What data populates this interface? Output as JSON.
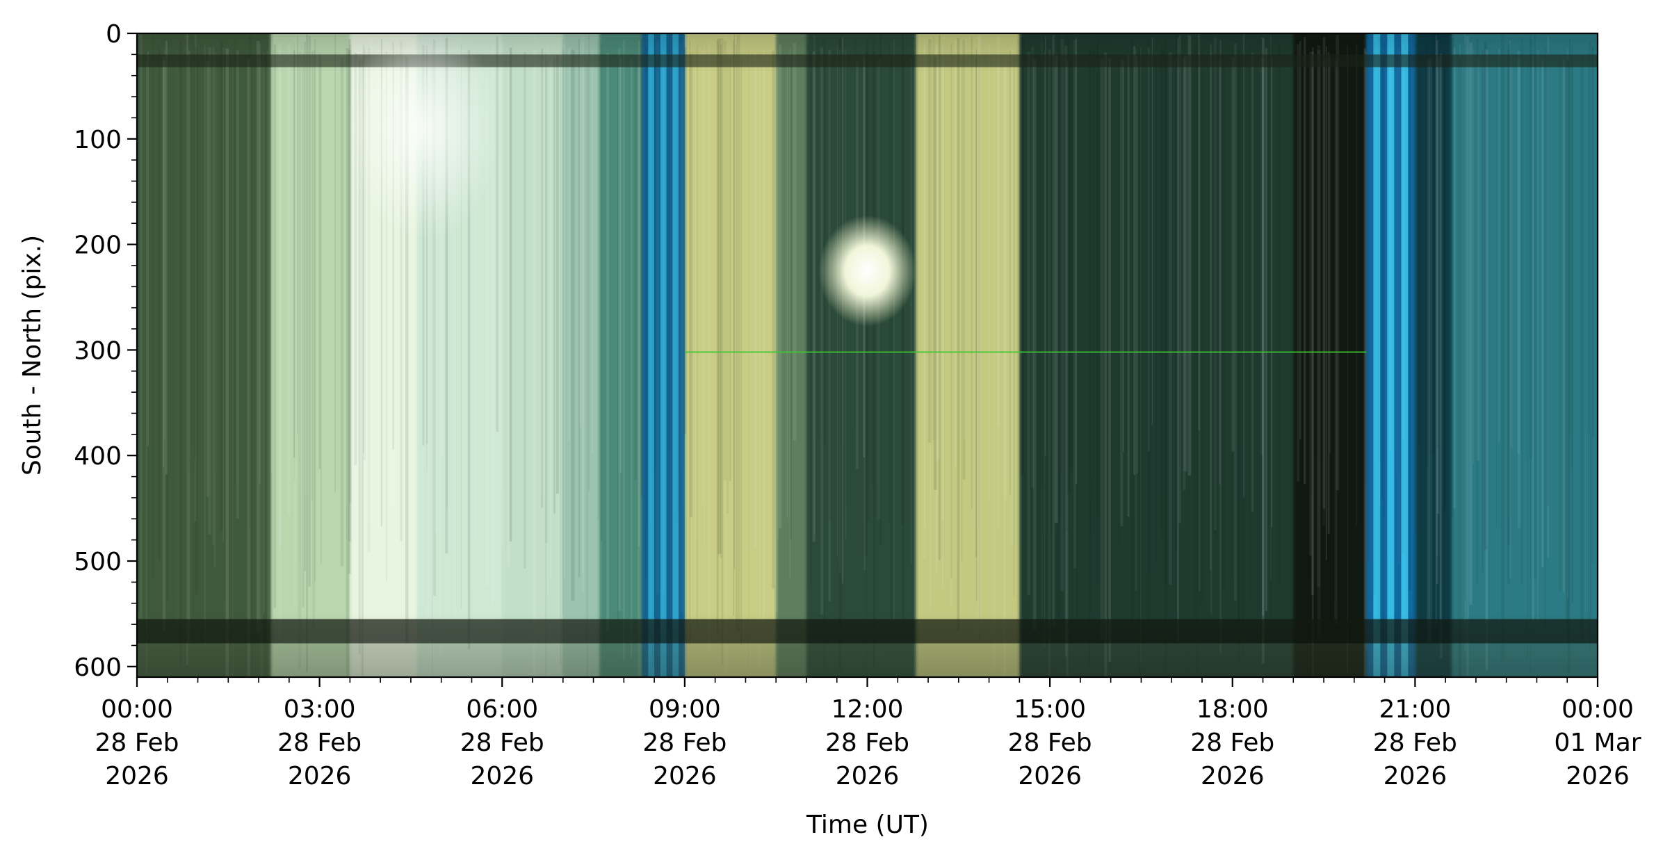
{
  "chart_data": {
    "type": "heatmap",
    "title": "",
    "xlabel": "Time (UT)",
    "ylabel": "South - North (pix.)",
    "x_range": [
      "2026-02-28T00:00",
      "2026-03-01T00:00"
    ],
    "ylim": [
      610,
      0
    ],
    "grid": false,
    "x_ticks": [
      {
        "t": 0,
        "l1": "00:00",
        "l2": "28 Feb",
        "l3": "2026"
      },
      {
        "t": 3,
        "l1": "03:00",
        "l2": "28 Feb",
        "l3": "2026"
      },
      {
        "t": 6,
        "l1": "06:00",
        "l2": "28 Feb",
        "l3": "2026"
      },
      {
        "t": 9,
        "l1": "09:00",
        "l2": "28 Feb",
        "l3": "2026"
      },
      {
        "t": 12,
        "l1": "12:00",
        "l2": "28 Feb",
        "l3": "2026"
      },
      {
        "t": 15,
        "l1": "15:00",
        "l2": "28 Feb",
        "l3": "2026"
      },
      {
        "t": 18,
        "l1": "18:00",
        "l2": "28 Feb",
        "l3": "2026"
      },
      {
        "t": 21,
        "l1": "21:00",
        "l2": "28 Feb",
        "l3": "2026"
      },
      {
        "t": 24,
        "l1": "00:00",
        "l2": "01 Mar",
        "l3": "2026"
      }
    ],
    "y_ticks": [
      0,
      100,
      200,
      300,
      400,
      500,
      600
    ],
    "segments": [
      {
        "start": 0.0,
        "end": 2.2,
        "color": "#3f5a3c"
      },
      {
        "start": 2.2,
        "end": 3.5,
        "color": "#b9d6b0"
      },
      {
        "start": 3.5,
        "end": 4.6,
        "color": "#e9f5e0"
      },
      {
        "start": 4.6,
        "end": 6.0,
        "color": "#cfe8d5"
      },
      {
        "start": 6.0,
        "end": 7.0,
        "color": "#c2dfc8"
      },
      {
        "start": 7.0,
        "end": 7.6,
        "color": "#9cc4ae"
      },
      {
        "start": 7.6,
        "end": 8.3,
        "color": "#4c8a78"
      },
      {
        "start": 8.3,
        "end": 9.0,
        "color": "#1f7ea8"
      },
      {
        "start": 9.0,
        "end": 10.5,
        "color": "#c8cc84"
      },
      {
        "start": 10.5,
        "end": 11.0,
        "color": "#5e7e5e"
      },
      {
        "start": 11.0,
        "end": 12.8,
        "color": "#2b4a3a"
      },
      {
        "start": 12.8,
        "end": 14.5,
        "color": "#c4c982"
      },
      {
        "start": 14.5,
        "end": 19.0,
        "color": "#1f3b30"
      },
      {
        "start": 19.0,
        "end": 20.2,
        "color": "#101a12"
      },
      {
        "start": 20.2,
        "end": 21.0,
        "color": "#1a9bd0"
      },
      {
        "start": 21.0,
        "end": 21.6,
        "color": "#0f3b45"
      },
      {
        "start": 21.6,
        "end": 24.0,
        "color": "#2c7a84"
      }
    ],
    "features": {
      "top_band_pix": [
        20,
        32
      ],
      "bottom_band_pix": [
        555,
        578
      ],
      "sun_time": 12.0,
      "sun_pix": 225,
      "green_line_pix": 302
    }
  }
}
